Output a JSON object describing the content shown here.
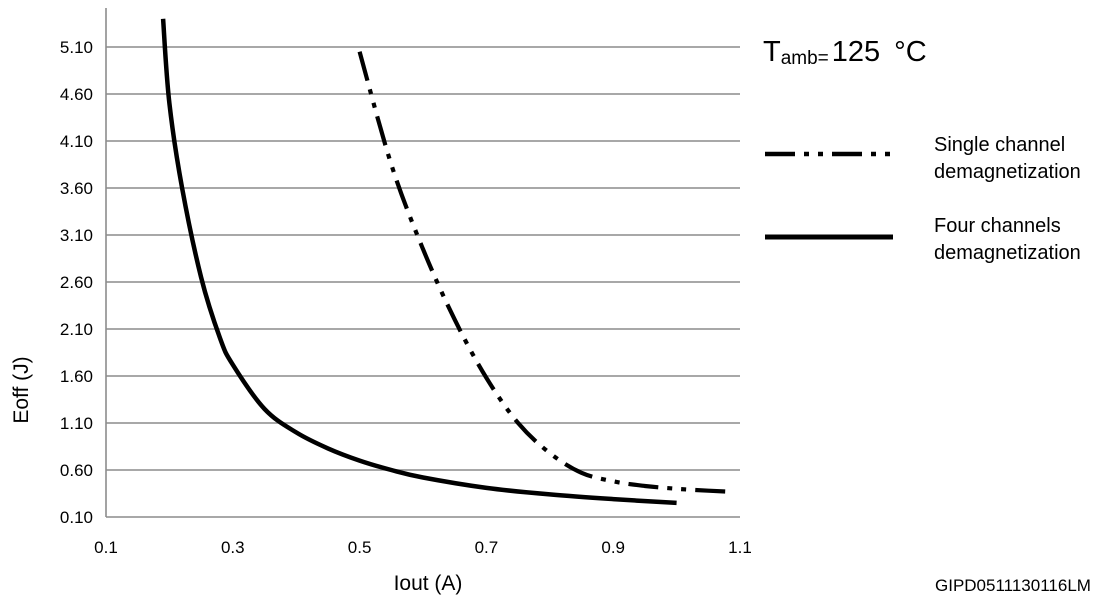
{
  "chart_data": {
    "type": "line",
    "xlabel": "Iout (A)",
    "ylabel": "Eoff  (J)",
    "xlim": [
      0.1,
      1.1
    ],
    "ylim": [
      0.1,
      5.1
    ],
    "x_ticks": [
      "0.1",
      "0.3",
      "0.5",
      "0.7",
      "0.9",
      "1.1"
    ],
    "y_ticks": [
      "0.10",
      "0.60",
      "1.10",
      "1.60",
      "2.10",
      "2.60",
      "3.10",
      "3.60",
      "4.10",
      "4.60",
      "5.10"
    ],
    "grid": "horizontal",
    "condition": {
      "t_symbol": "T",
      "subscript": "amb=",
      "value": "125",
      "unit": "°C"
    },
    "legend_position": "right",
    "series": [
      {
        "name": "Single channel demagnetization",
        "name_lines": [
          "Single channel",
          "demagnetization"
        ],
        "line_style": "dash-dot-dot",
        "color": "#000000",
        "x": [
          0.5,
          0.55,
          0.6,
          0.65,
          0.7,
          0.75,
          0.8,
          0.85,
          0.9,
          0.95,
          1.0,
          1.05,
          1.08
        ],
        "y": [
          5.05,
          3.85,
          2.95,
          2.2,
          1.58,
          1.1,
          0.78,
          0.57,
          0.48,
          0.43,
          0.4,
          0.38,
          0.37
        ]
      },
      {
        "name": "Four channels demagnetization",
        "name_lines": [
          "Four channels",
          "demagnetization"
        ],
        "line_style": "solid",
        "color": "#000000",
        "x": [
          0.19,
          0.2,
          0.22,
          0.25,
          0.28,
          0.3,
          0.35,
          0.4,
          0.45,
          0.5,
          0.55,
          0.6,
          0.7,
          0.8,
          0.9,
          1.0
        ],
        "y": [
          5.4,
          4.5,
          3.6,
          2.65,
          2.0,
          1.72,
          1.25,
          1.0,
          0.83,
          0.7,
          0.6,
          0.52,
          0.41,
          0.34,
          0.29,
          0.25
        ]
      }
    ]
  },
  "figure_code": "GIPD0511130116LM"
}
